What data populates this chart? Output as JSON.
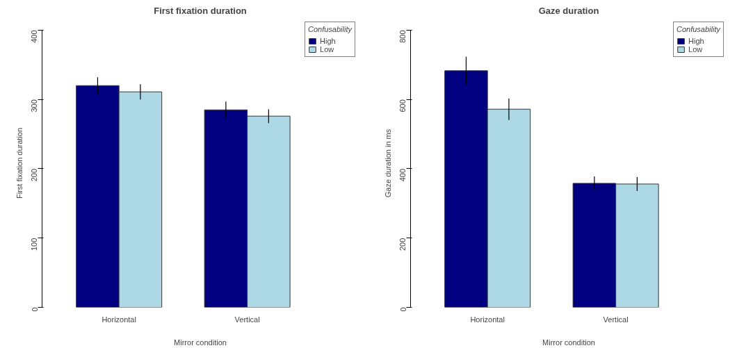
{
  "chart_data": [
    {
      "type": "bar",
      "title": "First fixation duration",
      "xlabel": "Mirror condition",
      "ylabel": "First fixation duration",
      "categories": [
        "Horizontal",
        "Vertical"
      ],
      "series": [
        {
          "name": "High",
          "color": "#000080",
          "values": [
            320,
            285
          ],
          "errors": [
            12,
            12
          ]
        },
        {
          "name": "Low",
          "color": "#add8e6",
          "values": [
            311,
            276
          ],
          "errors": [
            11,
            10
          ]
        }
      ],
      "ylim": [
        0,
        400
      ],
      "yticks": [
        0,
        100,
        200,
        300,
        400
      ],
      "grid": false,
      "legend": "top right",
      "legend_title": "Confusability"
    },
    {
      "type": "bar",
      "title": "Gaze duration",
      "xlabel": "Mirror condition",
      "ylabel": "Gaze duration in ms",
      "categories": [
        "Horizontal",
        "Vertical"
      ],
      "series": [
        {
          "name": "High",
          "color": "#000080",
          "values": [
            683,
            358
          ],
          "errors": [
            40,
            20
          ]
        },
        {
          "name": "Low",
          "color": "#add8e6",
          "values": [
            572,
            356
          ],
          "errors": [
            31,
            20
          ]
        }
      ],
      "ylim": [
        0,
        800
      ],
      "yticks": [
        0,
        200,
        400,
        600,
        800
      ],
      "grid": false,
      "legend": "top right",
      "legend_title": "Confusability"
    }
  ]
}
